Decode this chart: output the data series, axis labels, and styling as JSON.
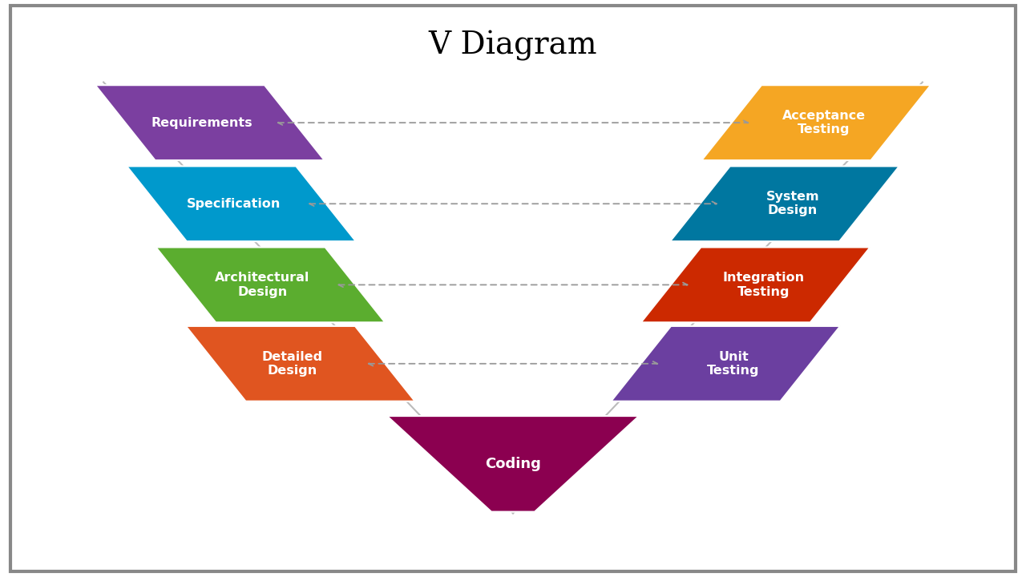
{
  "title": "V Diagram",
  "title_fontsize": 28,
  "title_font": "serif",
  "background_color": "#ffffff",
  "border_color": "#888888",
  "text_color": "#ffffff",
  "left_stages": [
    {
      "label": "Requirements",
      "color": "#7B3FA0"
    },
    {
      "label": "Specification",
      "color": "#0099CC"
    },
    {
      "label": "Architectural\nDesign",
      "color": "#5BAD2F"
    },
    {
      "label": "Detailed\nDesign",
      "color": "#E05520"
    }
  ],
  "right_stages": [
    {
      "label": "Acceptance\nTesting",
      "color": "#F5A623"
    },
    {
      "label": "System\nDesign",
      "color": "#0077A0"
    },
    {
      "label": "Integration\nTesting",
      "color": "#CC2900"
    },
    {
      "label": "Unit\nTesting",
      "color": "#6B3FA0"
    }
  ],
  "coding": {
    "label": "Coding",
    "color": "#8B0050"
  },
  "arrow_color": "#999999"
}
